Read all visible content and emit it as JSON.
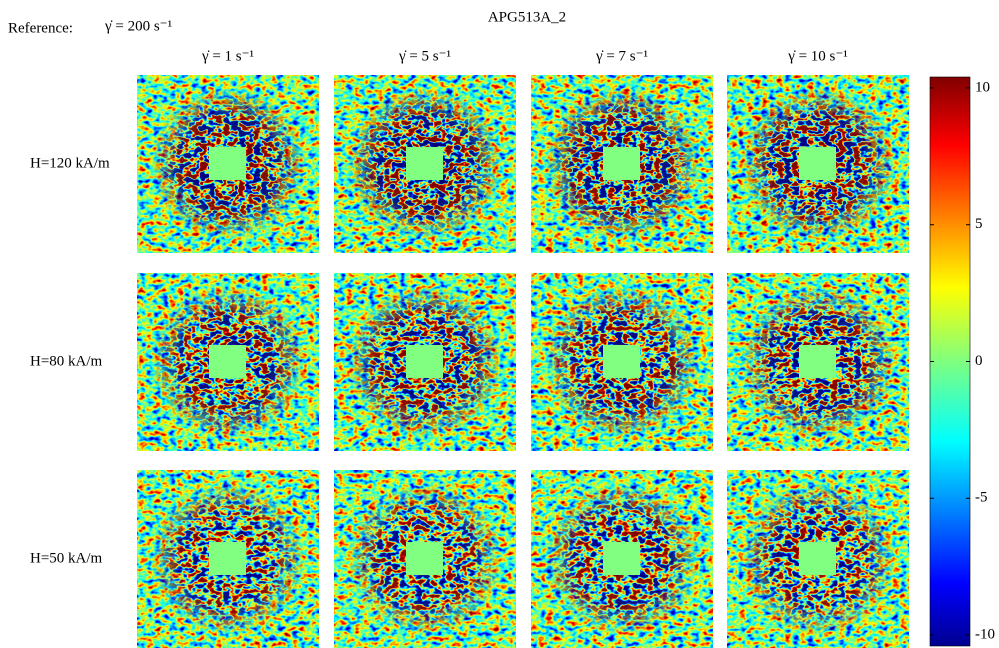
{
  "chart_data": {
    "type": "heatmap",
    "title": "APG513A_2",
    "annotation": "Reference:",
    "reference_rate": "γ̇ = 200 s⁻¹",
    "columns": [
      "γ̇ = 1 s⁻¹",
      "γ̇ = 5 s⁻¹",
      "γ̇ = 7 s⁻¹",
      "γ̇ = 10 s⁻¹"
    ],
    "rows": [
      "H=120 kA/m",
      "H=80 kA/m",
      "H=50 kA/m"
    ],
    "clim": [
      -10.4,
      10.4
    ],
    "cticks": [
      10,
      5,
      0,
      -5,
      -10
    ],
    "colormap": "jet"
  }
}
